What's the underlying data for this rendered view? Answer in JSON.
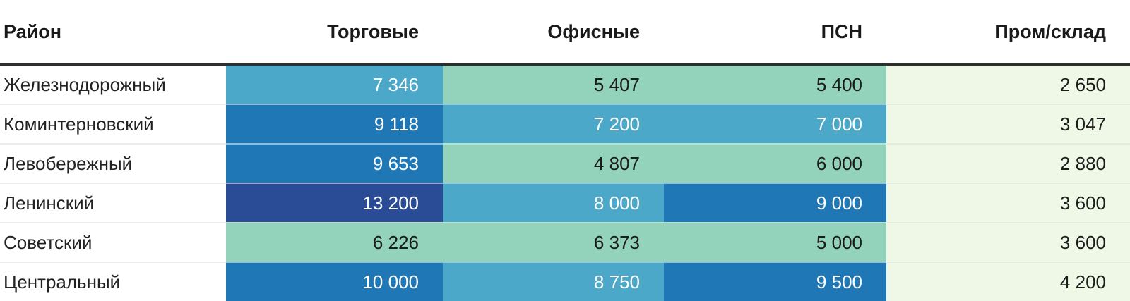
{
  "table": {
    "columns": [
      {
        "key": "district",
        "label": "Район"
      },
      {
        "key": "torgovye",
        "label": "Торговые"
      },
      {
        "key": "ofisnye",
        "label": "Офисные"
      },
      {
        "key": "psn",
        "label": "ПСН"
      },
      {
        "key": "promsklad",
        "label": "Пром/склад"
      }
    ],
    "palette": [
      {
        "bg": "#EFF7E6",
        "fg": "#1c1c1c",
        "sep": "#e2ecd8"
      },
      {
        "bg": "#93D3BB",
        "fg": "#1b1b1b",
        "sep": "#b9e2d0"
      },
      {
        "bg": "#4BA8C9",
        "fg": "#ffffff",
        "sep": "#90c8dc"
      },
      {
        "bg": "#1F77B5",
        "fg": "#ffffff",
        "sep": "#8fbcd9"
      },
      {
        "bg": "#2A4C96",
        "fg": "#ffffff",
        "sep": "#93a5cc"
      }
    ],
    "rows": [
      {
        "district": "Железнодорожный",
        "cells": [
          {
            "v": "7 346",
            "level": 2
          },
          {
            "v": "5 407",
            "level": 1
          },
          {
            "v": "5 400",
            "level": 1
          },
          {
            "v": "2 650",
            "level": 0
          }
        ]
      },
      {
        "district": "Коминтерновский",
        "cells": [
          {
            "v": "9 118",
            "level": 3
          },
          {
            "v": "7 200",
            "level": 2
          },
          {
            "v": "7 000",
            "level": 2
          },
          {
            "v": "3 047",
            "level": 0
          }
        ]
      },
      {
        "district": "Левобережный",
        "cells": [
          {
            "v": "9 653",
            "level": 3
          },
          {
            "v": "4 807",
            "level": 1
          },
          {
            "v": "6 000",
            "level": 1
          },
          {
            "v": "2 880",
            "level": 0
          }
        ]
      },
      {
        "district": "Ленинский",
        "cells": [
          {
            "v": "13 200",
            "level": 4
          },
          {
            "v": "8 000",
            "level": 2
          },
          {
            "v": "9 000",
            "level": 3
          },
          {
            "v": "3 600",
            "level": 0
          }
        ]
      },
      {
        "district": "Советский",
        "cells": [
          {
            "v": "6 226",
            "level": 1
          },
          {
            "v": "6 373",
            "level": 1
          },
          {
            "v": "5 000",
            "level": 1
          },
          {
            "v": "3 600",
            "level": 0
          }
        ]
      },
      {
        "district": "Центральный",
        "cells": [
          {
            "v": "10 000",
            "level": 3
          },
          {
            "v": "8 750",
            "level": 2
          },
          {
            "v": "9 500",
            "level": 3
          },
          {
            "v": "4 200",
            "level": 0
          }
        ]
      }
    ]
  },
  "chart_data": {
    "type": "heatmap",
    "title": "",
    "rows": [
      "Железнодорожный",
      "Коминтерновский",
      "Левобережный",
      "Ленинский",
      "Советский",
      "Центральный"
    ],
    "columns": [
      "Торговые",
      "Офисные",
      "ПСН",
      "Пром/склад"
    ],
    "values": [
      [
        7346,
        5407,
        5400,
        2650
      ],
      [
        9118,
        7200,
        7000,
        3047
      ],
      [
        9653,
        4807,
        6000,
        2880
      ],
      [
        13200,
        8000,
        9000,
        3600
      ],
      [
        6226,
        6373,
        5000,
        3600
      ],
      [
        10000,
        8750,
        9500,
        4200
      ]
    ],
    "value_range": [
      2650,
      13200
    ],
    "color_scale": {
      "low": "#EFF7E6",
      "mid_low": "#93D3BB",
      "mid": "#4BA8C9",
      "mid_high": "#1F77B5",
      "high": "#2A4C96"
    },
    "legend": "none",
    "grid": "off"
  }
}
